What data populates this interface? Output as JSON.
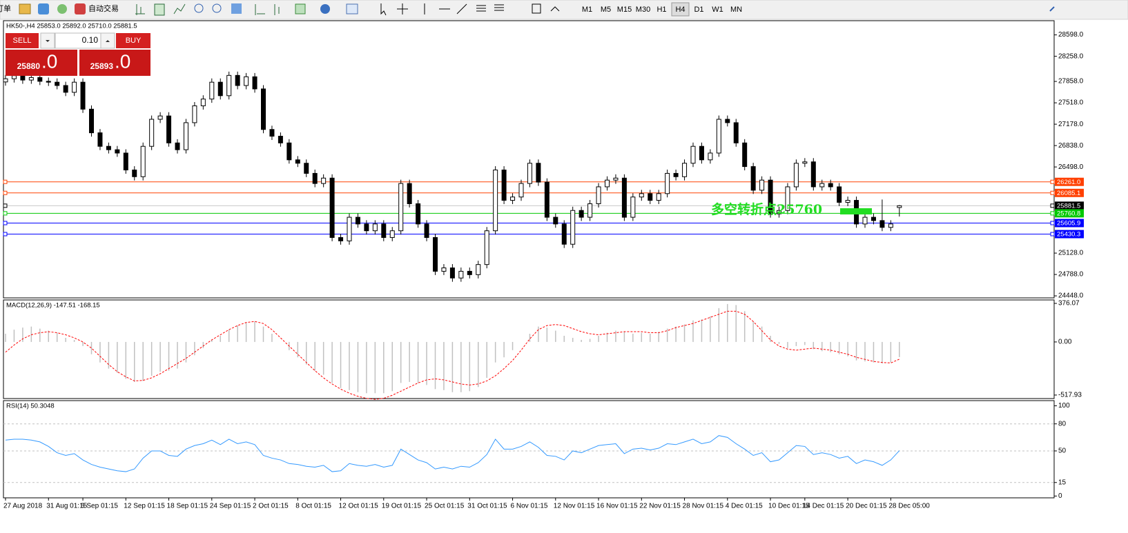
{
  "toolbar": {
    "orders": "订单",
    "auto_trading": "自动交易",
    "timeframes": [
      "M1",
      "M5",
      "M15",
      "M30",
      "H1",
      "H4",
      "D1",
      "W1",
      "MN"
    ],
    "active_timeframe": "H4"
  },
  "trade_panel": {
    "sell": "SELL",
    "buy": "BUY",
    "lot": "0.10",
    "sell_price": "25880",
    "sell_fraction": ".0",
    "buy_price": "25893",
    "buy_fraction": ".0"
  },
  "chart_data": [
    {
      "type": "candlestick",
      "title": "HK50-,H4  25853.0 25892.0 25710.0 25881.5",
      "ylim": [
        24416,
        28813
      ],
      "yticks": [
        {
          "value": 28598,
          "label": "28598.0"
        },
        {
          "value": 28258,
          "label": "28258.0"
        },
        {
          "value": 27858,
          "label": "27858.0"
        },
        {
          "value": 27518,
          "label": "27518.0"
        },
        {
          "value": 27178,
          "label": "27178.0"
        },
        {
          "value": 26838,
          "label": "26838.0"
        },
        {
          "value": 26498,
          "label": "26498.0"
        },
        {
          "value": 25128,
          "label": "25128.0"
        },
        {
          "value": 24788,
          "label": "24788.0"
        },
        {
          "value": 24448,
          "label": "24448.0"
        }
      ],
      "categories": [
        "27 Aug 2018",
        null,
        null,
        null,
        null,
        "31 Aug 01:15",
        null,
        null,
        null,
        "6 Sep 01:15",
        null,
        null,
        null,
        null,
        "12 Sep 01:15",
        null,
        null,
        null,
        null,
        "18 Sep 01:15",
        null,
        null,
        null,
        null,
        "24 Sep 01:15",
        null,
        null,
        null,
        null,
        "2 Oct 01:15",
        null,
        null,
        null,
        null,
        "8 Oct 01:15",
        null,
        null,
        null,
        null,
        "12 Oct 01:15",
        null,
        null,
        null,
        null,
        "19 Oct 01:15",
        null,
        null,
        null,
        null,
        "25 Oct 01:15",
        null,
        null,
        null,
        null,
        "31 Oct 01:15",
        null,
        null,
        null,
        null,
        "6 Nov 01:15",
        null,
        null,
        null,
        null,
        "12 Nov 01:15",
        null,
        null,
        null,
        null,
        "16 Nov 01:15",
        null,
        null,
        null,
        null,
        "22 Nov 01:15",
        null,
        null,
        null,
        null,
        "28 Nov 01:15",
        null,
        null,
        null,
        null,
        "4 Dec 01:15",
        null,
        null,
        null,
        null,
        "10 Dec 01:15",
        null,
        null,
        null,
        "14 Dec 01:15",
        null,
        null,
        null,
        null,
        "20 Dec 01:15",
        null,
        null,
        null,
        null,
        "28 Dec 05:00",
        null
      ],
      "values": [
        [
          27850,
          27960,
          27790,
          27900
        ],
        [
          27900,
          28010,
          27840,
          27950
        ],
        [
          27950,
          28010,
          27820,
          27880
        ],
        [
          27880,
          27980,
          27820,
          27920
        ],
        [
          27920,
          27980,
          27800,
          27860
        ],
        [
          27860,
          27920,
          27786,
          27846
        ],
        [
          27846,
          27906,
          27733,
          27793
        ],
        [
          27793,
          27853,
          27625,
          27685
        ],
        [
          27685,
          27906,
          27625,
          27846
        ],
        [
          27846,
          27906,
          27357,
          27417
        ],
        [
          27417,
          27477,
          26981,
          27041
        ],
        [
          27041,
          27101,
          26766,
          26826
        ],
        [
          26826,
          26886,
          26712,
          26772
        ],
        [
          26772,
          26832,
          26659,
          26719
        ],
        [
          26719,
          26779,
          26390,
          26450
        ],
        [
          26450,
          26510,
          26283,
          26343
        ],
        [
          26343,
          26886,
          26283,
          26826
        ],
        [
          26826,
          27316,
          26766,
          27256
        ],
        [
          27256,
          27369,
          27196,
          27309
        ],
        [
          27309,
          27369,
          26820,
          26880
        ],
        [
          26880,
          26940,
          26712,
          26772
        ],
        [
          26772,
          27262,
          26712,
          27202
        ],
        [
          27202,
          27530,
          27142,
          27470
        ],
        [
          27470,
          27638,
          27410,
          27578
        ],
        [
          27578,
          27906,
          27518,
          27846
        ],
        [
          27846,
          27906,
          27571,
          27631
        ],
        [
          27631,
          28014,
          27571,
          27954
        ],
        [
          27954,
          28014,
          27733,
          27793
        ],
        [
          27793,
          27992,
          27733,
          27932
        ],
        [
          27932,
          27992,
          27679,
          27739
        ],
        [
          27739,
          27799,
          27034,
          27094
        ],
        [
          27094,
          27154,
          26927,
          26987
        ],
        [
          26987,
          27047,
          26820,
          26880
        ],
        [
          26880,
          26940,
          26551,
          26611
        ],
        [
          26611,
          26671,
          26497,
          26557
        ],
        [
          26557,
          26617,
          26336,
          26396
        ],
        [
          26396,
          26456,
          26175,
          26235
        ],
        [
          26235,
          26381,
          26175,
          26321
        ],
        [
          26321,
          26381,
          25316,
          25376
        ],
        [
          25376,
          25436,
          25262,
          25322
        ],
        [
          25322,
          25758,
          25262,
          25698
        ],
        [
          25698,
          25758,
          25531,
          25591
        ],
        [
          25591,
          25651,
          25423,
          25483
        ],
        [
          25483,
          25651,
          25423,
          25591
        ],
        [
          25591,
          25651,
          25316,
          25376
        ],
        [
          25376,
          25543,
          25316,
          25483
        ],
        [
          25483,
          26295,
          25423,
          26235
        ],
        [
          26235,
          26295,
          25853,
          25913
        ],
        [
          25913,
          25973,
          25531,
          25591
        ],
        [
          25591,
          25651,
          25316,
          25376
        ],
        [
          25376,
          25436,
          24779,
          24839
        ],
        [
          24839,
          24953,
          24779,
          24893
        ],
        [
          24893,
          24953,
          24672,
          24732
        ],
        [
          24732,
          24899,
          24672,
          24839
        ],
        [
          24839,
          24899,
          24725,
          24785
        ],
        [
          24785,
          25006,
          24725,
          24946
        ],
        [
          24946,
          25543,
          24886,
          25483
        ],
        [
          25483,
          26510,
          25423,
          26450
        ],
        [
          26450,
          26510,
          25907,
          25967
        ],
        [
          25967,
          26080,
          25907,
          26020
        ],
        [
          26020,
          26295,
          25960,
          26235
        ],
        [
          26235,
          26617,
          26175,
          26557
        ],
        [
          26557,
          26617,
          26197,
          26257
        ],
        [
          26257,
          26317,
          25638,
          25698
        ],
        [
          25698,
          25758,
          25531,
          25591
        ],
        [
          25591,
          25651,
          25209,
          25269
        ],
        [
          25269,
          25866,
          25209,
          25806
        ],
        [
          25806,
          25866,
          25638,
          25698
        ],
        [
          25698,
          25973,
          25638,
          25913
        ],
        [
          25913,
          26242,
          25853,
          26182
        ],
        [
          26182,
          26349,
          26122,
          26289
        ],
        [
          26289,
          26381,
          26229,
          26321
        ],
        [
          26321,
          26381,
          25638,
          25698
        ],
        [
          25698,
          26080,
          25638,
          26020
        ],
        [
          26020,
          26134,
          25960,
          26074
        ],
        [
          26074,
          26134,
          25907,
          25967
        ],
        [
          25967,
          26134,
          25907,
          26074
        ],
        [
          26074,
          26456,
          26014,
          26396
        ],
        [
          26396,
          26456,
          26283,
          26343
        ],
        [
          26343,
          26617,
          26283,
          26557
        ],
        [
          26557,
          26886,
          26497,
          26826
        ],
        [
          26826,
          26886,
          26551,
          26611
        ],
        [
          26611,
          26779,
          26551,
          26719
        ],
        [
          26719,
          27316,
          26659,
          27256
        ],
        [
          27256,
          27316,
          27142,
          27202
        ],
        [
          27202,
          27262,
          26820,
          26880
        ],
        [
          26880,
          26940,
          26444,
          26504
        ],
        [
          26504,
          26564,
          26068,
          26128
        ],
        [
          26128,
          26349,
          26068,
          26289
        ],
        [
          26289,
          26349,
          25692,
          25752
        ],
        [
          25752,
          25866,
          25692,
          25806
        ],
        [
          25806,
          26242,
          25746,
          26182
        ],
        [
          26182,
          26617,
          26122,
          26557
        ],
        [
          26557,
          26639,
          26497,
          26579
        ],
        [
          26579,
          26639,
          26122,
          26182
        ],
        [
          26182,
          26295,
          26122,
          26235
        ],
        [
          26235,
          26295,
          26122,
          26182
        ],
        [
          26182,
          26242,
          25875,
          25935
        ],
        [
          25935,
          26027,
          25875,
          25967
        ],
        [
          25967,
          26027,
          25531,
          25591
        ],
        [
          25591,
          25758,
          25531,
          25698
        ],
        [
          25698,
          25758,
          25585,
          25645
        ],
        [
          25645,
          25980,
          25477,
          25537
        ],
        [
          25537,
          25651,
          25477,
          25591
        ],
        [
          25853,
          25892,
          25710,
          25881.5
        ]
      ],
      "levels": [
        {
          "value": 26261,
          "label": "26261.0",
          "color": "#ff4000"
        },
        {
          "value": 26085.1,
          "label": "26085.1",
          "color": "#ff4000"
        },
        {
          "value": 25881.5,
          "label": "25881.5",
          "color": "#000000",
          "line_color": "#c8c8c8"
        },
        {
          "value": 25760.8,
          "label": "25760.8",
          "color": "#00c800"
        },
        {
          "value": 25605.9,
          "label": "25605.9",
          "color": "#0000ff"
        },
        {
          "value": 25430.3,
          "label": "25430.3",
          "color": "#0000ff"
        }
      ],
      "annotation": {
        "text": "多空转折点25760",
        "color": "#22dd22"
      }
    },
    {
      "type": "macd",
      "title": "MACD(12,26,9) -147.51 -168.15",
      "ylim": [
        -552,
        403
      ],
      "yticks": [
        376.07,
        {
          "value": 0,
          "label": "0.00"
        },
        -517.93
      ],
      "hist_color": "#c0c0c0",
      "signal_color": "#ff0000",
      "values": [
        80,
        120,
        140,
        150,
        130,
        110,
        90,
        40,
        20,
        -40,
        -120,
        -200,
        -260,
        -300,
        -360,
        -390,
        -380,
        -330,
        -290,
        -280,
        -260,
        -200,
        -130,
        -60,
        20,
        60,
        120,
        160,
        190,
        200,
        150,
        80,
        0,
        -80,
        -150,
        -220,
        -280,
        -320,
        -400,
        -450,
        -470,
        -490,
        -500,
        -500,
        -500,
        -480,
        -400,
        -390,
        -400,
        -420,
        -460,
        -470,
        -490,
        -490,
        -480,
        -440,
        -350,
        -200,
        -150,
        -80,
        0,
        80,
        150,
        140,
        110,
        60,
        40,
        20,
        30,
        60,
        90,
        110,
        100,
        80,
        90,
        80,
        100,
        130,
        150,
        170,
        210,
        220,
        250,
        330,
        370,
        360,
        300,
        200,
        150,
        60,
        -20,
        -60,
        -40,
        -30,
        -70,
        -90,
        -100,
        -120,
        -140,
        -180,
        -190,
        -200,
        -210,
        -200,
        -147.51
      ],
      "signal": [
        -100,
        -30,
        30,
        70,
        90,
        100,
        90,
        70,
        40,
        0,
        -60,
        -140,
        -220,
        -290,
        -340,
        -380,
        -375,
        -350,
        -310,
        -260,
        -210,
        -160,
        -100,
        -40,
        20,
        70,
        120,
        160,
        190,
        200,
        180,
        120,
        40,
        -40,
        -120,
        -200,
        -280,
        -350,
        -410,
        -460,
        -500,
        -530,
        -550,
        -560,
        -550,
        -520,
        -480,
        -440,
        -400,
        -370,
        -360,
        -370,
        -390,
        -410,
        -420,
        -410,
        -380,
        -330,
        -260,
        -180,
        -80,
        30,
        120,
        160,
        170,
        160,
        130,
        100,
        80,
        70,
        80,
        90,
        100,
        100,
        100,
        90,
        90,
        110,
        140,
        160,
        180,
        210,
        240,
        270,
        300,
        300,
        270,
        200,
        110,
        20,
        -40,
        -70,
        -80,
        -70,
        -60,
        -70,
        -80,
        -100,
        -120,
        -150,
        -170,
        -190,
        -200,
        -205,
        -168.15
      ]
    },
    {
      "type": "line",
      "title": "RSI(14) 50.3048",
      "ylim": [
        -2,
        105
      ],
      "yticks": [
        100,
        80,
        50,
        15,
        0
      ],
      "levels": [
        80,
        50,
        15
      ],
      "color": "#3399ff",
      "values": [
        62,
        63,
        63,
        62,
        60,
        55,
        48,
        45,
        47,
        40,
        35,
        32,
        30,
        28,
        27,
        30,
        42,
        50,
        50,
        45,
        44,
        52,
        56,
        58,
        62,
        57,
        63,
        58,
        60,
        57,
        45,
        42,
        40,
        36,
        35,
        33,
        32,
        34,
        27,
        28,
        36,
        34,
        33,
        35,
        32,
        34,
        52,
        46,
        40,
        37,
        30,
        32,
        30,
        33,
        32,
        37,
        46,
        63,
        52,
        52,
        55,
        60,
        54,
        45,
        44,
        40,
        50,
        48,
        52,
        56,
        57,
        58,
        47,
        52,
        53,
        51,
        53,
        58,
        57,
        60,
        63,
        58,
        60,
        67,
        65,
        58,
        52,
        45,
        48,
        38,
        40,
        48,
        56,
        55,
        46,
        48,
        46,
        42,
        44,
        36,
        40,
        38,
        34,
        40,
        50.3048
      ]
    }
  ]
}
